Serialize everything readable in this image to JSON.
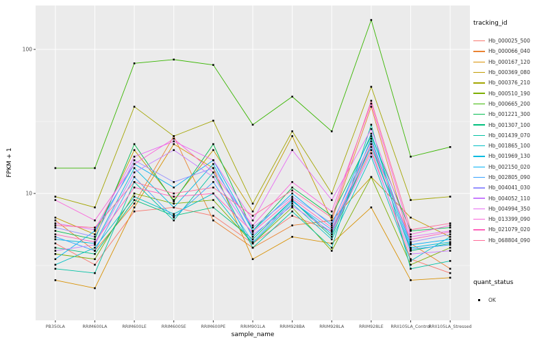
{
  "figure": {
    "ylabel": "FPKM + 1",
    "xlabel": "sample_name",
    "legend_title": "tracking_id",
    "quant_title": "quant_status",
    "quant_label": "OK"
  },
  "chart_data": {
    "type": "line",
    "yscale": "log10",
    "title": "",
    "xlabel": "sample_name",
    "ylabel": "FPKM + 1",
    "yticks": [
      10,
      100
    ],
    "minor_yticks": [
      3.162,
      31.62
    ],
    "ylim": [
      1.3,
      200
    ],
    "grid": true,
    "legend_position": "right",
    "panel_bg": "#EBEBEB",
    "grid_color": "#FFFFFF",
    "point_color": "#000000",
    "point_shape": "square",
    "categories": [
      "PB350LA",
      "RRIM600LA",
      "RRIM600LE",
      "RRIM600SE",
      "RRIM600PE",
      "RRIM901LA",
      "RRIM928BA",
      "RRIM928LA",
      "RRIM928LE",
      "RRII105LA_Control",
      "RRII105LA_Stressed"
    ],
    "series": [
      {
        "name": "Hb_000025_500",
        "color": "#F8766D",
        "values": [
          4.5,
          3.2,
          7.5,
          8,
          7,
          4.5,
          7,
          5.5,
          20,
          3.5,
          2.8
        ]
      },
      {
        "name": "Hb_000066_040",
        "color": "#EA8331",
        "values": [
          6.5,
          4.0,
          8.5,
          25,
          6.5,
          4.2,
          6,
          6.5,
          40,
          4.5,
          3.0
        ]
      },
      {
        "name": "Hb_000167_120",
        "color": "#D89000",
        "values": [
          2.5,
          2.2,
          8,
          22,
          15,
          3.5,
          5,
          4.5,
          8,
          2.5,
          2.6
        ]
      },
      {
        "name": "Hb_000369_080",
        "color": "#C09B00",
        "values": [
          6.8,
          5.2,
          20,
          9,
          20,
          7.5,
          25,
          6.5,
          13,
          6.8,
          5.0
        ]
      },
      {
        "name": "Hb_000376_210",
        "color": "#A3A500",
        "values": [
          9.5,
          8.0,
          40,
          25,
          32,
          8.5,
          27,
          10,
          55,
          9.0,
          9.5
        ]
      },
      {
        "name": "Hb_000510_190",
        "color": "#7CAE00",
        "values": [
          3.8,
          3.5,
          10,
          8.5,
          9,
          4.5,
          8,
          4.0,
          13,
          3.2,
          4.2
        ]
      },
      {
        "name": "Hb_000665_200",
        "color": "#39B600",
        "values": [
          15,
          15,
          80,
          85,
          78,
          30,
          47,
          27,
          160,
          18,
          21
        ]
      },
      {
        "name": "Hb_001221_300",
        "color": "#00BB4E",
        "values": [
          5.5,
          4.8,
          22,
          8.8,
          22,
          5.5,
          11,
          7.0,
          25,
          5.5,
          5.8
        ]
      },
      {
        "name": "Hb_001307_100",
        "color": "#00BF7D",
        "values": [
          4.2,
          3.8,
          9,
          7,
          8,
          4.8,
          9,
          5.0,
          22,
          4.0,
          4.5
        ]
      },
      {
        "name": "Hb_001439_070",
        "color": "#00C1A3",
        "values": [
          3.0,
          2.8,
          12,
          6.5,
          14,
          4.2,
          7.5,
          4.2,
          30,
          3.0,
          3.4
        ]
      },
      {
        "name": "Hb_001865_100",
        "color": "#00BFC4",
        "values": [
          3.2,
          4.2,
          9.5,
          7.2,
          10,
          4.5,
          8.5,
          4.8,
          18,
          3.4,
          5.0
        ]
      },
      {
        "name": "Hb_001969_130",
        "color": "#00BAE0",
        "values": [
          4.8,
          4.5,
          15,
          8,
          16,
          5.0,
          9,
          5.2,
          24,
          4.2,
          4.6
        ]
      },
      {
        "name": "Hb_002150_020",
        "color": "#00B0F6",
        "values": [
          3.5,
          5.5,
          16,
          11,
          17,
          5.5,
          10,
          6.0,
          26,
          4.4,
          4.8
        ]
      },
      {
        "name": "Hb_002805_090",
        "color": "#35A2FF",
        "values": [
          5.0,
          4.0,
          13,
          6.8,
          12,
          4.6,
          8.8,
          5.6,
          21,
          4.1,
          4.4
        ]
      },
      {
        "name": "Hb_004041_030",
        "color": "#9590FF",
        "values": [
          5.8,
          5.0,
          17,
          12,
          15,
          5.8,
          9.5,
          6.2,
          23,
          4.6,
          5.2
        ]
      },
      {
        "name": "Hb_004052_110",
        "color": "#C77CFF",
        "values": [
          4.0,
          4.4,
          14,
          20,
          13,
          5.2,
          8.2,
          5.4,
          19,
          3.8,
          4.0
        ]
      },
      {
        "name": "Hb_004994_350",
        "color": "#E76BF3",
        "values": [
          6.2,
          5.6,
          18,
          23,
          17,
          6.5,
          20,
          9.0,
          28,
          5.0,
          5.5
        ]
      },
      {
        "name": "Hb_013399_090",
        "color": "#FA62DB",
        "values": [
          9.0,
          6.5,
          16,
          24,
          14,
          6.0,
          12,
          7.5,
          42,
          5.2,
          6.0
        ]
      },
      {
        "name": "Hb_021079_020",
        "color": "#FF62BC",
        "values": [
          5.2,
          4.6,
          11,
          9.5,
          10,
          5.4,
          9.2,
          5.8,
          22,
          4.8,
          5.4
        ]
      },
      {
        "name": "Hb_068804_090",
        "color": "#FF6A98",
        "values": [
          6.0,
          5.8,
          12,
          10,
          11,
          7.0,
          10.5,
          6.8,
          44,
          5.6,
          6.2
        ]
      }
    ],
    "quant_status": {
      "label": "OK",
      "shape": "square",
      "color": "#000000"
    }
  }
}
